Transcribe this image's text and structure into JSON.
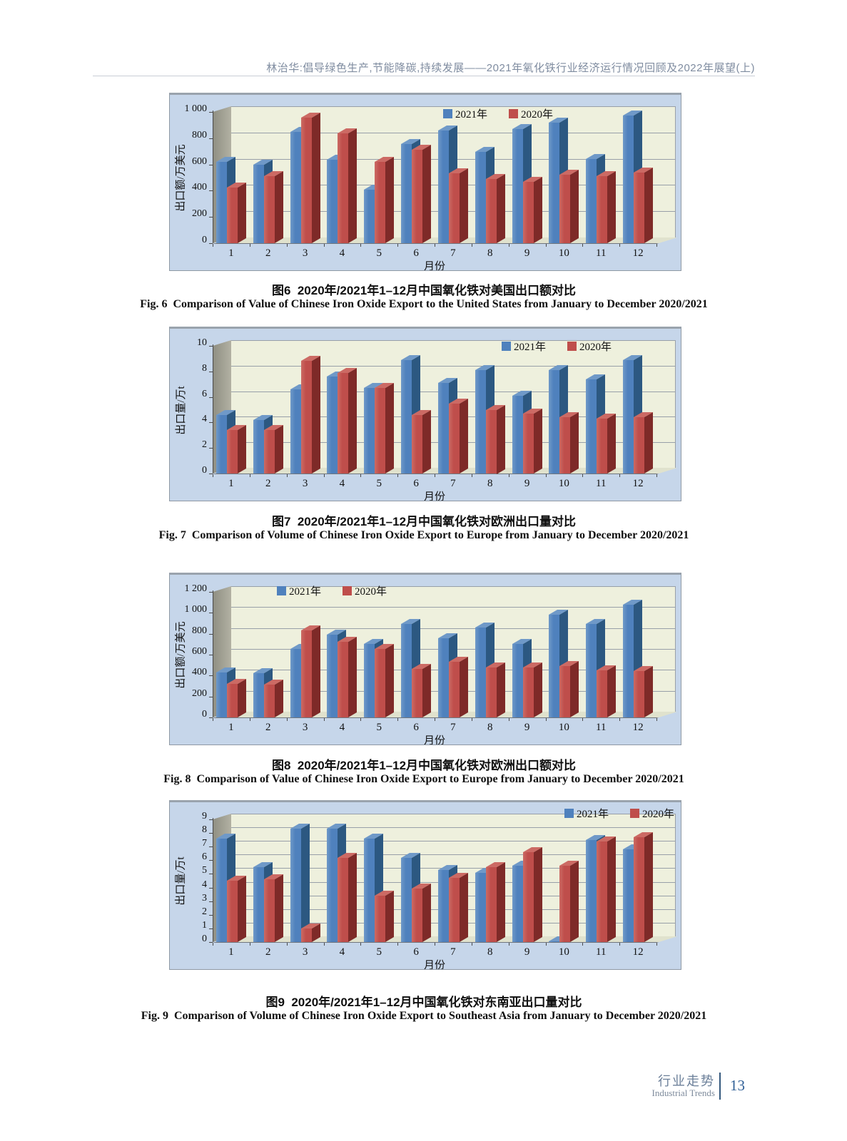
{
  "page": {
    "header": "林治华:倡导绿色生产,节能降碳,持续发展——2021年氧化铁行业经济运行情况回顾及2022年展望(上)",
    "footer": {
      "section_zh": "行业走势",
      "section_en": "Industrial Trends",
      "page_number": "13"
    }
  },
  "colors": {
    "series_2021_front": "#4f81bd",
    "series_2021_side": "#2c5881",
    "series_2021_top": "#6f99c8",
    "series_2020_front": "#bf4e4b",
    "series_2020_side": "#7e2a28",
    "series_2020_top": "#cc6a64",
    "plot_back_wall": "#eef0dd",
    "chart_background": "#c6d6ea",
    "left_wall": "#a8a79a",
    "gridline": "#989fa8"
  },
  "chart_data": [
    {
      "id": "figure-6",
      "type": "bar",
      "caption_zh": "图6  2020年/2021年1–12月中国氧化铁对美国出口额对比",
      "caption_en": "Fig. 6  Comparison of Value of Chinese Iron Oxide Export to the United States from January to December 2020/2021",
      "xlabel": "月份",
      "ylabel": "出口额/万美元",
      "ylim": [
        0,
        1000
      ],
      "ytick_step": 200,
      "grid": true,
      "legend_pos": "top-center",
      "categories": [
        "1",
        "2",
        "3",
        "4",
        "5",
        "6",
        "7",
        "8",
        "9",
        "10",
        "11",
        "12"
      ],
      "series": [
        {
          "name": "2021年",
          "values": [
            620,
            600,
            850,
            635,
            410,
            755,
            860,
            695,
            870,
            920,
            640,
            975
          ]
        },
        {
          "name": "2020年",
          "values": [
            425,
            510,
            955,
            835,
            620,
            710,
            530,
            490,
            465,
            520,
            510,
            540
          ]
        }
      ]
    },
    {
      "id": "figure-7",
      "type": "bar",
      "caption_zh": "图7  2020年/2021年1–12月中国氧化铁对欧洲出口量对比",
      "caption_en": "Fig. 7  Comparison of Volume of Chinese Iron Oxide Export to Europe from January to December 2020/2021",
      "xlabel": "月份",
      "ylabel": "出口量/万t",
      "ylim": [
        0,
        10
      ],
      "ytick_step": 2,
      "grid": true,
      "legend_pos": "top-right",
      "categories": [
        "1",
        "2",
        "3",
        "4",
        "5",
        "6",
        "7",
        "8",
        "9",
        "10",
        "11",
        "12"
      ],
      "series": [
        {
          "name": "2021年",
          "values": [
            4.6,
            4.2,
            6.6,
            7.6,
            6.7,
            8.9,
            7.1,
            8.1,
            6.1,
            8.1,
            7.4,
            8.9
          ]
        },
        {
          "name": "2020年",
          "values": [
            3.4,
            3.4,
            8.8,
            7.9,
            6.7,
            4.6,
            5.5,
            5.0,
            4.7,
            4.4,
            4.3,
            4.4
          ]
        }
      ]
    },
    {
      "id": "figure-8",
      "type": "bar",
      "caption_zh": "图8  2020年/2021年1–12月中国氧化铁对欧洲出口额对比",
      "caption_en": "Fig. 8  Comparison of Value of Chinese Iron Oxide Export to Europe from January to December 2020/2021",
      "xlabel": "月份",
      "ylabel": "出口额/万美元",
      "ylim": [
        0,
        1200
      ],
      "ytick_step": 200,
      "grid": true,
      "legend_pos": "top-left",
      "categories": [
        "1",
        "2",
        "3",
        "4",
        "5",
        "6",
        "7",
        "8",
        "9",
        "10",
        "11",
        "12"
      ],
      "series": [
        {
          "name": "2021年",
          "values": [
            430,
            425,
            655,
            790,
            700,
            895,
            755,
            860,
            705,
            985,
            895,
            1075
          ]
        },
        {
          "name": "2020年",
          "values": [
            320,
            315,
            830,
            725,
            655,
            465,
            530,
            480,
            480,
            490,
            450,
            445
          ]
        }
      ]
    },
    {
      "id": "figure-9",
      "type": "bar",
      "caption_zh": "图9  2020年/2021年1–12月中国氧化铁对东南亚出口量对比",
      "caption_en": "Fig. 9  Comparison of Volume of Chinese Iron Oxide Export to Southeast Asia from January to December 2020/2021",
      "xlabel": "月份",
      "ylabel": "出口量/万t",
      "ylim": [
        0,
        9
      ],
      "ytick_step": 1,
      "grid": true,
      "legend_pos": "top-far-right",
      "categories": [
        "1",
        "2",
        "3",
        "4",
        "5",
        "6",
        "7",
        "8",
        "9",
        "10",
        "11",
        "12"
      ],
      "series": [
        {
          "name": "2021年",
          "values": [
            7.6,
            5.5,
            8.3,
            8.3,
            7.6,
            6.2,
            5.3,
            5.1,
            5.6,
            0.05,
            7.5,
            6.8
          ]
        },
        {
          "name": "2020年",
          "values": [
            4.5,
            4.6,
            1.0,
            6.2,
            3.4,
            3.9,
            4.7,
            5.5,
            6.6,
            5.6,
            7.4,
            7.7
          ]
        }
      ]
    }
  ]
}
